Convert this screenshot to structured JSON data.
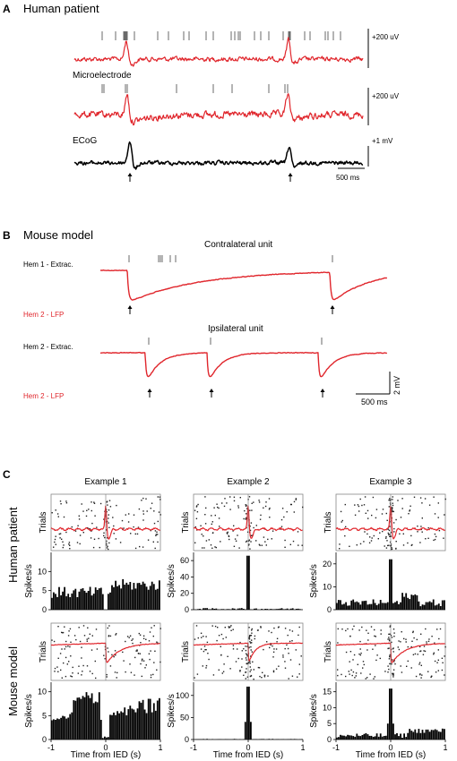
{
  "panelA": {
    "letter": "A",
    "title": "Human patient",
    "label_micro": "Microelectrode",
    "label_ecog": "ECoG",
    "scale_uv_1": "+200 uV",
    "scale_uv_2": "+200 uV",
    "scale_mv": "+1 mV",
    "scale_time": "500 ms"
  },
  "panelB": {
    "letter": "B",
    "title": "Mouse model",
    "contra_title": "Contralateral unit",
    "ipsi_title": "Ipsilateral unit",
    "row1_extrac": "Hem 1 - Extrac.",
    "row1_lfp": "Hem 2 - LFP",
    "row2_extrac": "Hem 2 - Extrac.",
    "row2_lfp": "Hem 2 - LFP",
    "scale_mv": "2 mV",
    "scale_time": "500 ms"
  },
  "panelC": {
    "letter": "C",
    "examples": [
      "Example 1",
      "Example 2",
      "Example 3"
    ],
    "row_human": "Human patient",
    "row_mouse": "Mouse model",
    "trials_label": "Trials",
    "spikes_label": "Spikes/s",
    "xlabel": "Time from IED (s)",
    "xticks": [
      "-1",
      "0",
      "1"
    ],
    "human_yticks": [
      [
        "0",
        "5",
        "10"
      ],
      [
        "0",
        "20",
        "40",
        "60"
      ],
      [
        "0",
        "10",
        "20"
      ]
    ],
    "mouse_yticks": [
      [
        "0",
        "5",
        "10"
      ],
      [
        "0",
        "50",
        "100"
      ],
      [
        "0",
        "5",
        "10",
        "15"
      ]
    ]
  },
  "colors": {
    "trace_red": "#e0262c",
    "trace_black": "#000000"
  }
}
